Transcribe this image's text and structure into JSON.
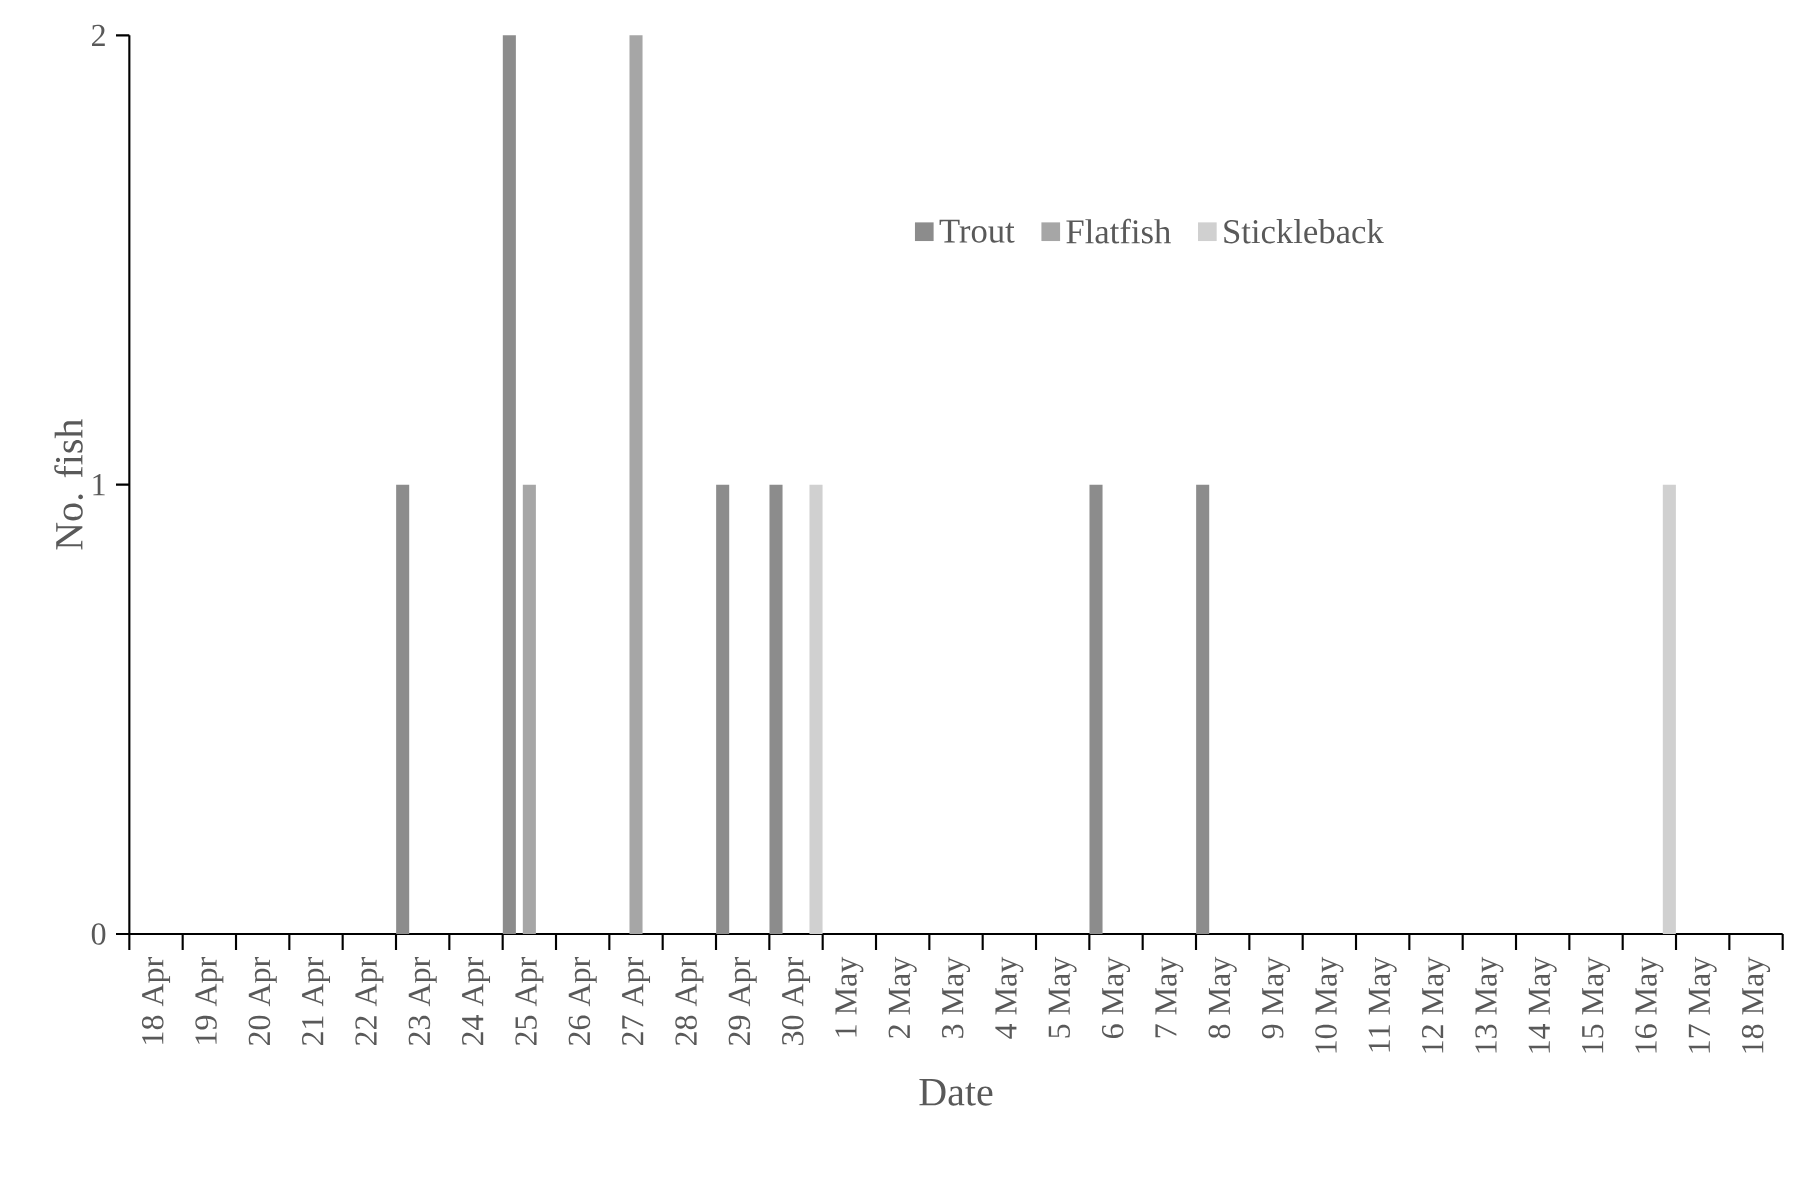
{
  "chart_data": {
    "type": "bar",
    "xlabel": "Date",
    "ylabel": "No. fish",
    "categories": [
      "18 Apr",
      "19 Apr",
      "20 Apr",
      "21 Apr",
      "22 Apr",
      "23 Apr",
      "24 Apr",
      "25 Apr",
      "26 Apr",
      "27 Apr",
      "28 Apr",
      "29 Apr",
      "30 Apr",
      "1 May",
      "2 May",
      "3 May",
      "4 May",
      "5 May",
      "6 May",
      "7 May",
      "8 May",
      "9 May",
      "10 May",
      "11 May",
      "12 May",
      "13 May",
      "14 May",
      "15 May",
      "16 May",
      "17 May",
      "18 May"
    ],
    "series": [
      {
        "name": "Trout",
        "color": "#8c8c8c",
        "values": [
          0,
          0,
          0,
          0,
          0,
          1,
          0,
          2,
          0,
          0,
          0,
          1,
          1,
          0,
          0,
          0,
          0,
          0,
          1,
          0,
          1,
          0,
          0,
          0,
          0,
          0,
          0,
          0,
          0,
          0,
          0
        ]
      },
      {
        "name": "Flatfish",
        "color": "#a6a6a6",
        "values": [
          0,
          0,
          0,
          0,
          0,
          0,
          0,
          1,
          0,
          2,
          0,
          0,
          0,
          0,
          0,
          0,
          0,
          0,
          0,
          0,
          0,
          0,
          0,
          0,
          0,
          0,
          0,
          0,
          0,
          0,
          0
        ]
      },
      {
        "name": "Stickleback",
        "color": "#d0d0d0",
        "values": [
          0,
          0,
          0,
          0,
          0,
          0,
          0,
          0,
          0,
          0,
          0,
          0,
          1,
          0,
          0,
          0,
          0,
          0,
          0,
          0,
          0,
          0,
          0,
          0,
          0,
          0,
          0,
          0,
          1,
          0,
          0
        ]
      }
    ],
    "ylim": [
      0,
      2
    ],
    "yticks": [
      0,
      1,
      2
    ],
    "grid": false,
    "legend": "top right"
  }
}
